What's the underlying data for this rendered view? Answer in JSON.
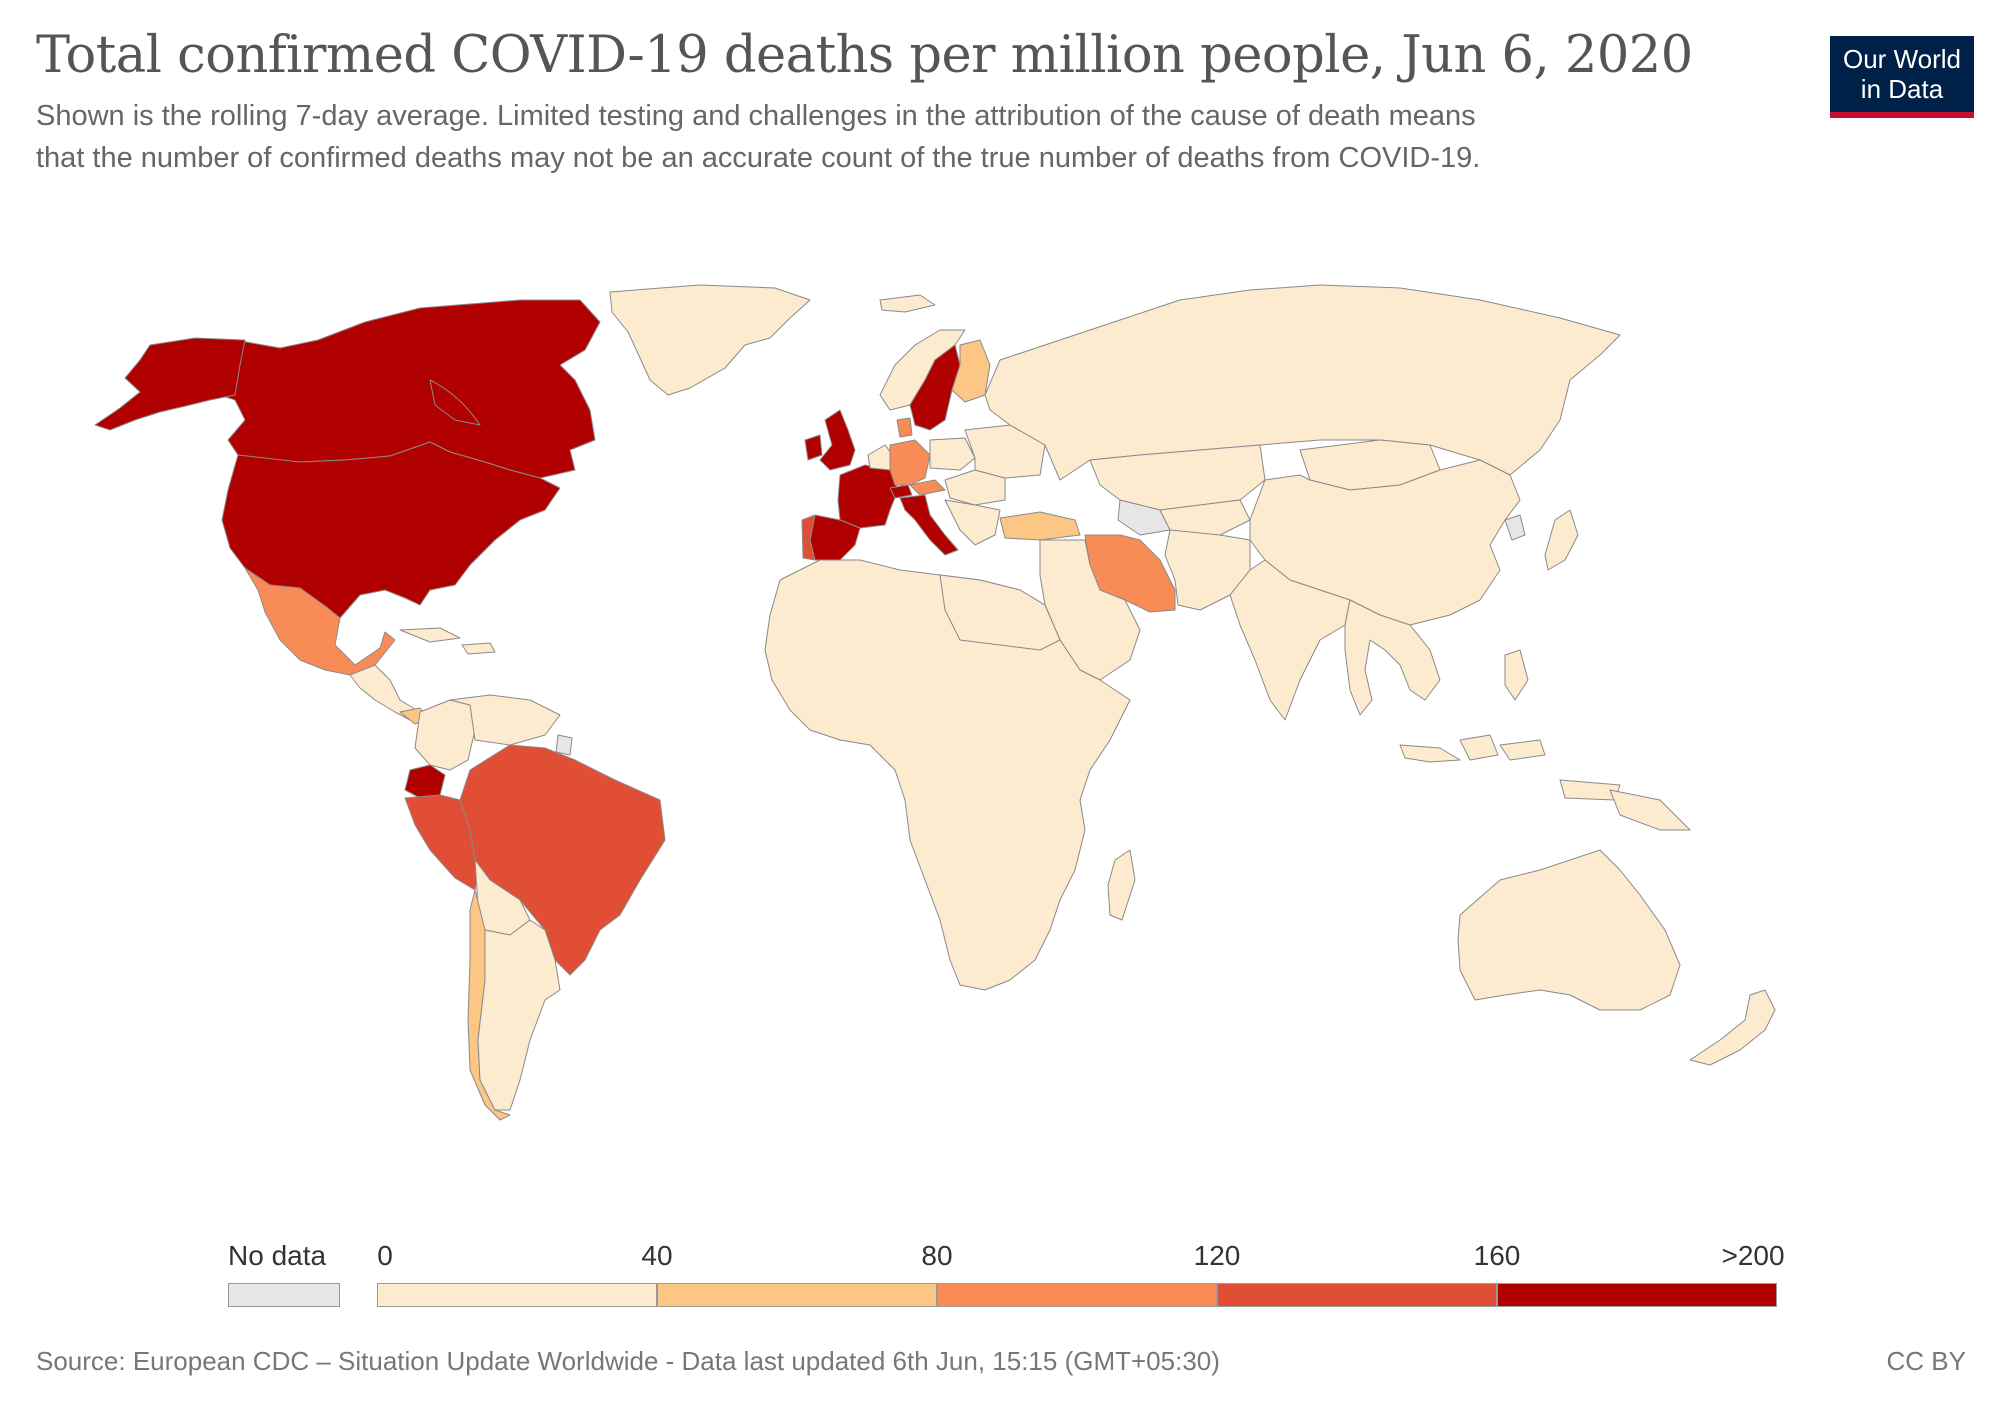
{
  "header": {
    "title": "Total confirmed COVID-19 deaths per million people, Jun 6, 2020",
    "subtitle_line1": "Shown is the rolling 7-day average. Limited testing and challenges in the attribution of the cause of death means",
    "subtitle_line2": "that the number of confirmed deaths may not be an accurate count of the true number of deaths from COVID-19."
  },
  "logo": {
    "line1": "Our World",
    "line2": "in Data"
  },
  "footer": {
    "source": "Source: European CDC – Situation Update Worldwide - Data last updated 6th Jun, 15:15 (GMT+05:30)",
    "license": "CC BY"
  },
  "chart_data": {
    "type": "choropleth",
    "metric": "Total confirmed COVID-19 deaths per million people",
    "date": "Jun 6, 2020",
    "legend": {
      "no_data_label": "No data",
      "no_data_color": "#e6e6e6",
      "tick_labels": [
        "0",
        "40",
        "80",
        "120",
        "160",
        ">200"
      ],
      "bins": [
        {
          "min": 0,
          "max": 40,
          "color": "#fdebd0"
        },
        {
          "min": 40,
          "max": 80,
          "color": "#fcc784"
        },
        {
          "min": 80,
          "max": 120,
          "color": "#f98c56"
        },
        {
          "min": 120,
          "max": 160,
          "color": "#e04e36"
        },
        {
          "min": 160,
          "max": 200,
          "color": "#b00000"
        }
      ]
    },
    "regions": [
      {
        "name": "United States",
        "bin": 4
      },
      {
        "name": "Canada",
        "bin": 4
      },
      {
        "name": "United Kingdom",
        "bin": 4
      },
      {
        "name": "France",
        "bin": 4
      },
      {
        "name": "Spain",
        "bin": 4
      },
      {
        "name": "Italy",
        "bin": 4
      },
      {
        "name": "Belgium",
        "bin": 4
      },
      {
        "name": "Netherlands",
        "bin": 4
      },
      {
        "name": "Sweden",
        "bin": 4
      },
      {
        "name": "Ireland",
        "bin": 4
      },
      {
        "name": "Switzerland",
        "bin": 4
      },
      {
        "name": "Ecuador",
        "bin": 4
      },
      {
        "name": "Brazil",
        "bin": 3
      },
      {
        "name": "Peru",
        "bin": 3
      },
      {
        "name": "Portugal",
        "bin": 3
      },
      {
        "name": "Mexico",
        "bin": 2
      },
      {
        "name": "Germany",
        "bin": 2
      },
      {
        "name": "Iran",
        "bin": 2
      },
      {
        "name": "Denmark",
        "bin": 2
      },
      {
        "name": "Austria",
        "bin": 2
      },
      {
        "name": "Chile",
        "bin": 1
      },
      {
        "name": "Finland",
        "bin": 1
      },
      {
        "name": "Turkey",
        "bin": 1
      },
      {
        "name": "Romania",
        "bin": 1
      },
      {
        "name": "Hungary",
        "bin": 1
      },
      {
        "name": "Panama",
        "bin": 1
      },
      {
        "name": "Russia",
        "bin": 0
      },
      {
        "name": "China",
        "bin": 0
      },
      {
        "name": "India",
        "bin": 0
      },
      {
        "name": "Australia",
        "bin": 0
      },
      {
        "name": "Greenland",
        "bin": 0
      },
      {
        "name": "Argentina",
        "bin": 0
      },
      {
        "name": "Colombia",
        "bin": 0
      },
      {
        "name": "Bolivia",
        "bin": 0
      },
      {
        "name": "Venezuela",
        "bin": 0
      },
      {
        "name": "Africa",
        "bin": 0
      },
      {
        "name": "Saudi Arabia",
        "bin": 0
      },
      {
        "name": "Kazakhstan",
        "bin": 0
      },
      {
        "name": "Mongolia",
        "bin": 0
      },
      {
        "name": "Japan",
        "bin": 0
      },
      {
        "name": "Indonesia",
        "bin": 0
      },
      {
        "name": "New Zealand",
        "bin": 0
      },
      {
        "name": "Madagascar",
        "bin": 0
      },
      {
        "name": "Norway",
        "bin": 0
      },
      {
        "name": "Poland",
        "bin": 0
      },
      {
        "name": "Turkmenistan",
        "bin": null
      },
      {
        "name": "North Korea",
        "bin": null
      },
      {
        "name": "French Guiana",
        "bin": null
      }
    ]
  }
}
